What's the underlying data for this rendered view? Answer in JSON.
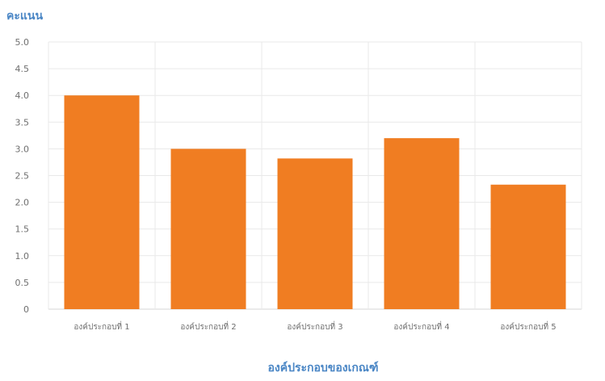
{
  "chart_data": {
    "type": "bar",
    "ylabel": "คะแนน",
    "xlabel": "องค์ประกอบของเกณฑ์",
    "categories": [
      "องค์ประกอบที่ 1",
      "องค์ประกอบที่ 2",
      "องค์ประกอบที่ 3",
      "องค์ประกอบที่ 4",
      "องค์ประกอบที่ 5"
    ],
    "values": [
      4.0,
      3.0,
      2.82,
      3.2,
      2.33
    ],
    "ylim": [
      0,
      5
    ],
    "yticks": [
      "0",
      "0.5",
      "1.0",
      "1.5",
      "2.0",
      "2.5",
      "3.0",
      "3.5",
      "4.0",
      "4.5",
      "5.0"
    ],
    "grid": true,
    "bar_color": "#f07d22",
    "title_color": "#4a86c5"
  }
}
